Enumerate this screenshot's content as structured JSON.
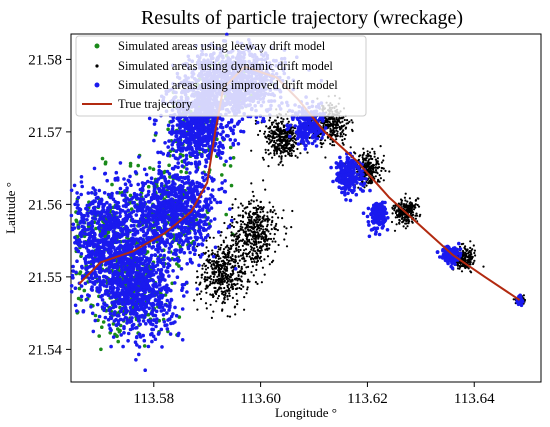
{
  "chart_data": {
    "type": "scatter",
    "title": "Results of particle trajectory (wreckage)",
    "xlabel": "Longitude °",
    "ylabel": "Latitude °",
    "xlim": [
      113.5645,
      113.6525
    ],
    "ylim": [
      21.5355,
      21.5835
    ],
    "x_ticks": [
      "113.58",
      "113.60",
      "113.62",
      "113.64"
    ],
    "x_tick_values": [
      113.58,
      113.6,
      113.62,
      113.64
    ],
    "y_ticks": [
      "21.54",
      "21.55",
      "21.56",
      "21.57",
      "21.58"
    ],
    "y_tick_values": [
      21.54,
      21.55,
      21.56,
      21.57,
      21.58
    ],
    "grid": false,
    "legend_position": "top-left",
    "series": [
      {
        "name": "Simulated areas using leeway drift model",
        "marker": "dot",
        "color": "#1a8a1a",
        "clusters": [
          {
            "cx": 113.571,
            "cy": 21.5555,
            "sx": 0.0045,
            "sy": 0.004,
            "n": 220
          },
          {
            "cx": 113.576,
            "cy": 21.548,
            "sx": 0.004,
            "sy": 0.0035,
            "n": 200
          },
          {
            "cx": 113.583,
            "cy": 21.559,
            "sx": 0.004,
            "sy": 0.0035,
            "n": 180
          },
          {
            "cx": 113.588,
            "cy": 21.57,
            "sx": 0.003,
            "sy": 0.003,
            "n": 90
          },
          {
            "cx": 113.594,
            "cy": 21.576,
            "sx": 0.003,
            "sy": 0.002,
            "n": 60
          }
        ]
      },
      {
        "name": "Simulated areas using dynamic drift model",
        "marker": "dot",
        "color": "#000000",
        "clusters": [
          {
            "cx": 113.593,
            "cy": 21.5505,
            "sx": 0.0022,
            "sy": 0.0022,
            "n": 450
          },
          {
            "cx": 113.599,
            "cy": 21.556,
            "sx": 0.0022,
            "sy": 0.0022,
            "n": 450
          },
          {
            "cx": 113.604,
            "cy": 21.569,
            "sx": 0.0018,
            "sy": 0.0016,
            "n": 350
          },
          {
            "cx": 113.613,
            "cy": 21.571,
            "sx": 0.0018,
            "sy": 0.0014,
            "n": 330
          },
          {
            "cx": 113.62,
            "cy": 21.565,
            "sx": 0.0013,
            "sy": 0.0011,
            "n": 250
          },
          {
            "cx": 113.627,
            "cy": 21.559,
            "sx": 0.0011,
            "sy": 0.0009,
            "n": 220
          },
          {
            "cx": 113.638,
            "cy": 21.5525,
            "sx": 0.001,
            "sy": 0.0008,
            "n": 200
          },
          {
            "cx": 113.6485,
            "cy": 21.5468,
            "sx": 0.0004,
            "sy": 0.0003,
            "n": 60
          }
        ]
      },
      {
        "name": "Simulated areas using improved drift model",
        "marker": "dot",
        "color": "#1a1aee",
        "clusters": [
          {
            "cx": 113.572,
            "cy": 21.555,
            "sx": 0.0042,
            "sy": 0.0036,
            "n": 900
          },
          {
            "cx": 113.577,
            "cy": 21.548,
            "sx": 0.0036,
            "sy": 0.0032,
            "n": 700
          },
          {
            "cx": 113.584,
            "cy": 21.559,
            "sx": 0.0036,
            "sy": 0.003,
            "n": 800
          },
          {
            "cx": 113.588,
            "cy": 21.571,
            "sx": 0.003,
            "sy": 0.0028,
            "n": 700
          },
          {
            "cx": 113.595,
            "cy": 21.577,
            "sx": 0.0045,
            "sy": 0.0022,
            "n": 900
          },
          {
            "cx": 113.609,
            "cy": 21.571,
            "sx": 0.0015,
            "sy": 0.0013,
            "n": 220
          },
          {
            "cx": 113.6165,
            "cy": 21.564,
            "sx": 0.0012,
            "sy": 0.0012,
            "n": 220
          },
          {
            "cx": 113.622,
            "cy": 21.5585,
            "sx": 0.0009,
            "sy": 0.0009,
            "n": 160
          },
          {
            "cx": 113.6355,
            "cy": 21.5528,
            "sx": 0.0008,
            "sy": 0.0007,
            "n": 140
          },
          {
            "cx": 113.6485,
            "cy": 21.5468,
            "sx": 0.0003,
            "sy": 0.0003,
            "n": 40
          }
        ]
      },
      {
        "name": "True trajectory",
        "marker": "line",
        "color": "#b22a10",
        "x": [
          113.566,
          113.57,
          113.576,
          113.582,
          113.587,
          113.59,
          113.5915,
          113.593,
          113.597,
          113.603,
          113.607,
          113.612,
          113.618,
          113.624,
          113.63,
          113.636,
          113.642,
          113.6485
        ],
        "y": [
          21.549,
          21.552,
          21.5535,
          21.556,
          21.559,
          21.563,
          21.57,
          21.576,
          21.579,
          21.5775,
          21.5745,
          21.57,
          21.566,
          21.561,
          21.557,
          21.553,
          21.55,
          21.5468
        ]
      }
    ]
  }
}
